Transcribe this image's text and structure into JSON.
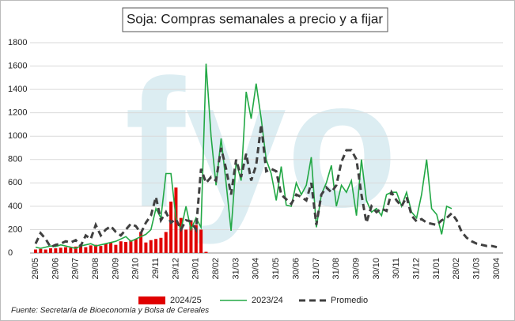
{
  "chart_data": {
    "type": "bar_line",
    "title": "Soja: Compras semanales a precio y a fijar",
    "watermark": "fyo",
    "source": "Fuente: Secretaría de Bioeconomía y Bolsa de Cereales",
    "categories": [
      "29/05",
      null,
      null,
      null,
      "29/06",
      null,
      null,
      null,
      "29/07",
      null,
      null,
      null,
      "29/08",
      null,
      null,
      null,
      "29/09",
      null,
      null,
      null,
      "29/10",
      null,
      null,
      null,
      "29/11",
      null,
      null,
      null,
      "29/12",
      null,
      null,
      null,
      "29/01",
      null,
      null,
      null,
      "28/02",
      null,
      null,
      null,
      "31/03",
      null,
      null,
      null,
      "30/04",
      null,
      null,
      null,
      "31/05",
      null,
      null,
      null,
      "30/06",
      null,
      null,
      null,
      "31/07",
      null,
      null,
      null,
      "31/08",
      null,
      null,
      null,
      "30/09",
      null,
      null,
      null,
      "30/10",
      null,
      null,
      null,
      "30/11",
      null,
      null,
      null,
      "31/12",
      null,
      null,
      null,
      "31/01",
      null,
      null,
      null,
      "28/02",
      null,
      null,
      null,
      "31/03",
      null,
      null,
      null,
      "30/04"
    ],
    "series": [
      {
        "name": "2024/25",
        "kind": "bar",
        "color": "#e00000",
        "values": [
          30,
          35,
          30,
          40,
          40,
          45,
          50,
          45,
          55,
          60,
          50,
          65,
          70,
          60,
          80,
          90,
          70,
          100,
          95,
          110,
          120,
          180,
          90,
          110,
          120,
          130,
          180,
          440,
          560,
          300,
          200,
          280,
          240,
          200,
          10,
          null,
          null,
          null,
          null,
          null,
          null,
          null,
          null,
          null,
          null,
          null,
          null,
          null,
          null,
          null,
          null,
          null,
          null,
          null,
          null,
          null,
          null,
          null,
          null,
          null,
          null,
          null,
          null,
          null,
          null,
          null,
          null,
          null,
          null,
          null,
          null,
          null,
          null,
          null,
          null,
          null,
          null,
          null,
          null,
          null,
          null,
          null,
          null,
          null,
          null,
          null,
          null,
          null,
          null,
          null,
          null,
          null,
          null
        ]
      },
      {
        "name": "2023/24",
        "kind": "line",
        "color": "#22a845",
        "values": [
          50,
          40,
          50,
          60,
          55,
          70,
          60,
          50,
          40,
          60,
          70,
          80,
          60,
          70,
          80,
          90,
          100,
          120,
          140,
          100,
          120,
          140,
          160,
          200,
          380,
          300,
          680,
          680,
          300,
          200,
          400,
          200,
          300,
          220,
          1620,
          1000,
          580,
          980,
          600,
          190,
          780,
          620,
          1380,
          1150,
          1450,
          1150,
          800,
          680,
          450,
          740,
          410,
          400,
          600,
          500,
          580,
          820,
          220,
          500,
          600,
          750,
          400,
          580,
          520,
          620,
          320,
          800,
          450,
          350,
          380,
          320,
          500,
          520,
          520,
          400,
          520,
          350,
          300,
          500,
          800,
          380,
          330,
          160,
          400,
          380,
          null,
          null,
          null,
          null,
          null,
          null,
          null,
          null,
          null
        ]
      },
      {
        "name": "Promedio",
        "kind": "dashed",
        "color": "#404040",
        "values": [
          80,
          170,
          120,
          50,
          70,
          80,
          100,
          90,
          110,
          60,
          150,
          120,
          240,
          150,
          200,
          230,
          180,
          150,
          200,
          250,
          230,
          170,
          260,
          320,
          480,
          280,
          350,
          260,
          290,
          200,
          280,
          270,
          200,
          720,
          600,
          650,
          620,
          900,
          720,
          500,
          800,
          650,
          850,
          620,
          750,
          1100,
          700,
          720,
          700,
          500,
          460,
          420,
          500,
          480,
          450,
          600,
          240,
          500,
          560,
          520,
          580,
          780,
          880,
          880,
          800,
          500,
          260,
          400,
          350,
          380,
          360,
          520,
          450,
          400,
          480,
          320,
          270,
          290,
          260,
          250,
          240,
          280,
          300,
          340,
          280,
          180,
          130,
          100,
          80,
          70,
          60,
          60,
          50
        ]
      }
    ],
    "ylim": [
      0,
      1800
    ],
    "yticks": [
      0,
      200,
      400,
      600,
      800,
      1000,
      1200,
      1400,
      1600,
      1800
    ],
    "grid": true,
    "legend": "bottom"
  }
}
